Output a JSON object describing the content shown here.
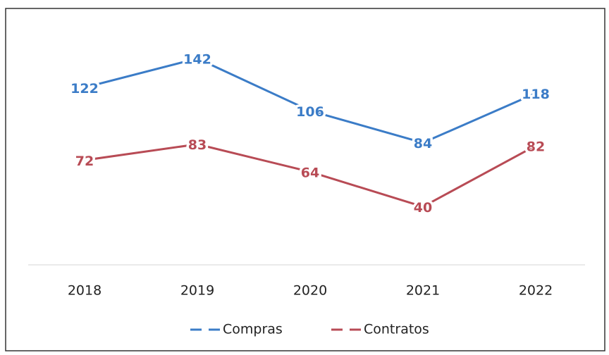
{
  "chart_data": {
    "type": "line",
    "categories": [
      "2018",
      "2019",
      "2020",
      "2021",
      "2022"
    ],
    "series": [
      {
        "name": "Compras",
        "color": "#3b7cc7",
        "values": [
          122,
          142,
          106,
          84,
          118
        ]
      },
      {
        "name": "Contratos",
        "color": "#b84b55",
        "values": [
          72,
          83,
          64,
          40,
          82
        ]
      }
    ]
  }
}
